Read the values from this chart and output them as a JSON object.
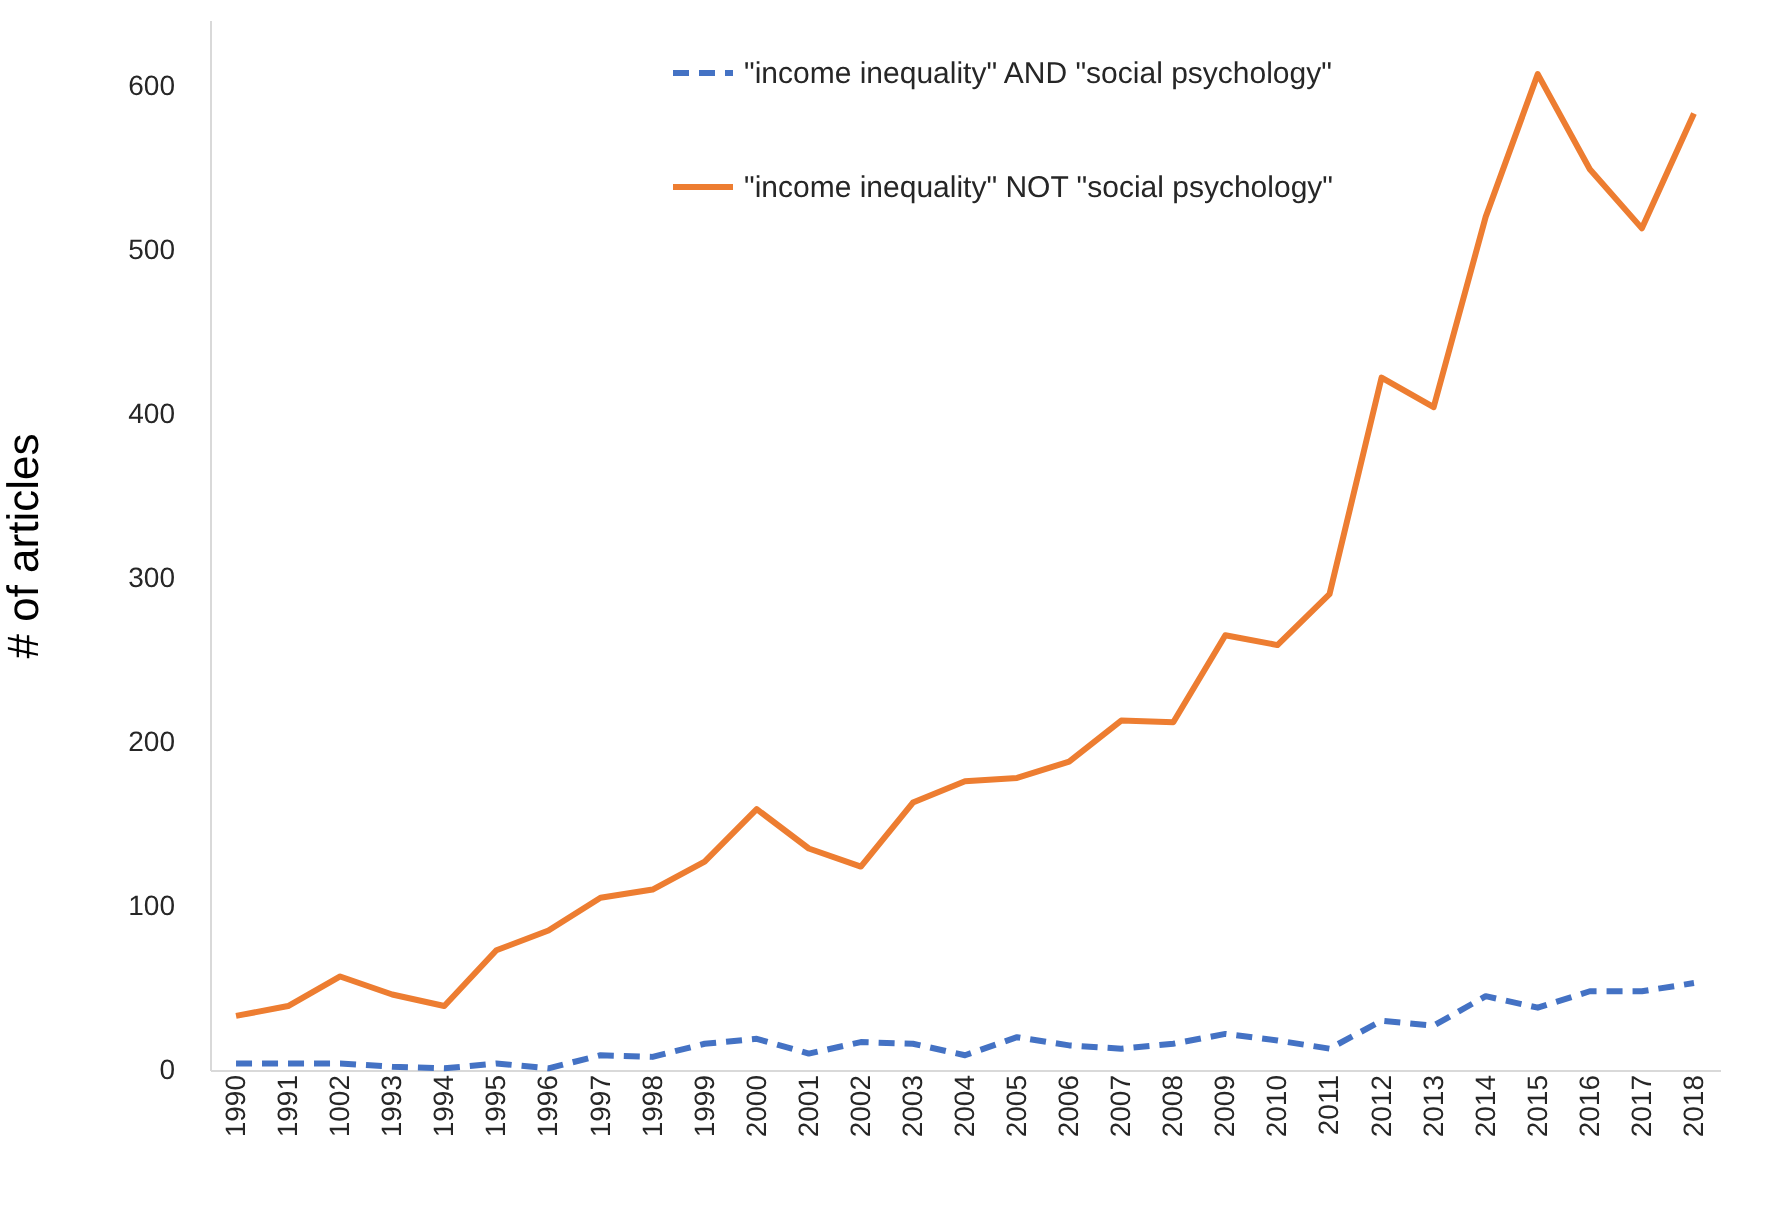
{
  "chart_data": {
    "type": "line",
    "ylabel": "# of articles",
    "categories": [
      "1990",
      "1991",
      "1002",
      "1993",
      "1994",
      "1995",
      "1996",
      "1997",
      "1998",
      "1999",
      "2000",
      "2001",
      "2002",
      "2003",
      "2004",
      "2005",
      "2006",
      "2007",
      "2008",
      "2009",
      "2010",
      "2011",
      "2012",
      "2013",
      "2014",
      "2015",
      "2016",
      "2017",
      "2018"
    ],
    "series": [
      {
        "name": "\"income inequality\" AND \"social psychology\"",
        "color": "#4472c4",
        "line_style": "dashed",
        "values": [
          4,
          4,
          4,
          2,
          1,
          4,
          1,
          9,
          8,
          16,
          19,
          10,
          17,
          16,
          9,
          20,
          15,
          13,
          16,
          22,
          18,
          13,
          30,
          27,
          45,
          38,
          48,
          48,
          53
        ]
      },
      {
        "name": "\"income inequality\" NOT \"social psychology\"",
        "color": "#ed7d31",
        "line_style": "solid",
        "values": [
          33,
          39,
          57,
          46,
          39,
          73,
          85,
          105,
          110,
          127,
          159,
          135,
          124,
          163,
          176,
          178,
          188,
          213,
          212,
          265,
          259,
          290,
          422,
          404,
          520,
          607,
          549,
          513,
          583
        ]
      }
    ],
    "ylim": [
      0,
      640
    ],
    "yticks": [
      0,
      100,
      200,
      300,
      400,
      500,
      600
    ],
    "grid": false,
    "legend": "top"
  }
}
